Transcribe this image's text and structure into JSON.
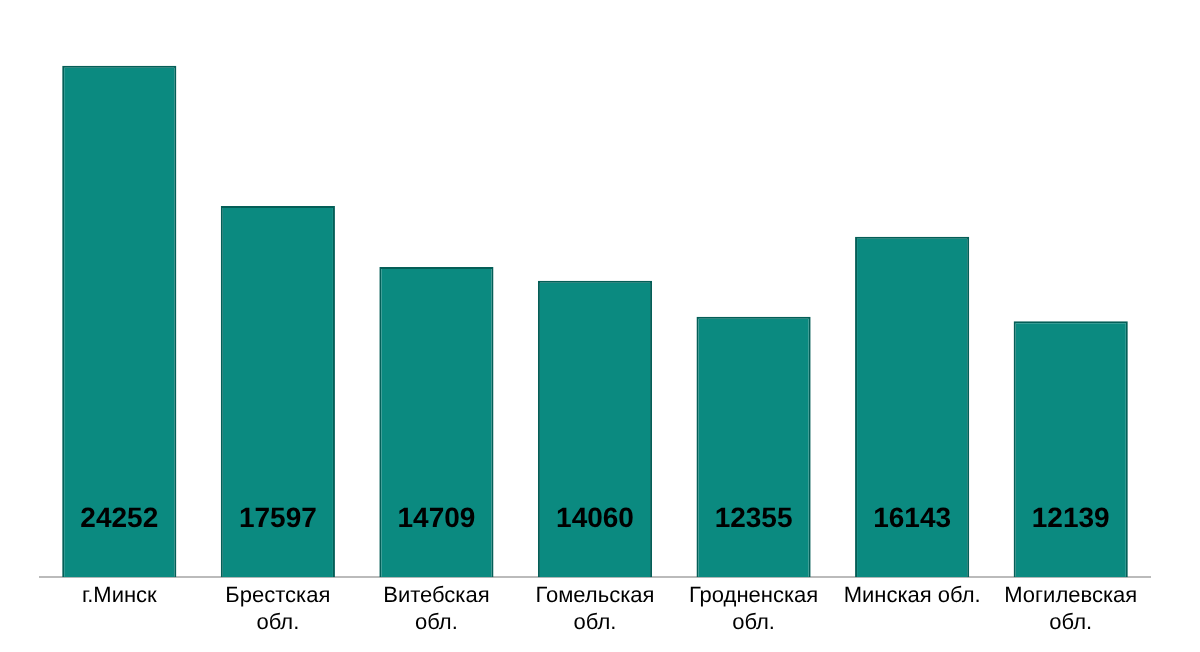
{
  "chart_data": {
    "type": "bar",
    "categories": [
      "г.Минск",
      "Брестская\nобл.",
      "Витебская\nобл.",
      "Гомельская\nобл.",
      "Гродненская\nобл.",
      "Минская обл.",
      "Могилевская\nобл."
    ],
    "values": [
      24252,
      17597,
      14709,
      14060,
      12355,
      16143,
      12139
    ],
    "color": "#0b8a80",
    "data_labels": true,
    "grid": false,
    "legend": false
  }
}
